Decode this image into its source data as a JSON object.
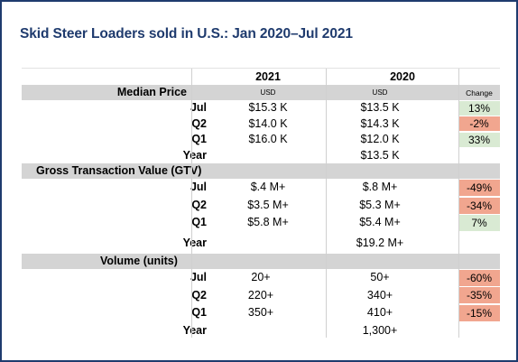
{
  "title": "Skid Steer Loaders sold in U.S.: Jan 2020–Jul 2021",
  "columns": {
    "y2021": "2021",
    "y2020": "2020",
    "unit_2021": "USD",
    "unit_2020": "USD",
    "change": "Change"
  },
  "sections": [
    {
      "name": "Median Price",
      "rows": [
        {
          "label": "Jul",
          "v2021": "$15.3 K",
          "v2020": "$13.5 K",
          "change": "13%",
          "sign": "pos"
        },
        {
          "label": "Q2",
          "v2021": "$14.0 K",
          "v2020": "$14.3 K",
          "change": "-2%",
          "sign": "neg"
        },
        {
          "label": "Q1",
          "v2021": "$16.0 K",
          "v2020": "$12.0 K",
          "change": "33%",
          "sign": "pos"
        },
        {
          "label": "Year",
          "v2021": "",
          "v2020": "$13.5 K",
          "change": "",
          "sign": ""
        }
      ]
    },
    {
      "name": "Gross Transaction Value (GTV)",
      "rows": [
        {
          "label": "Jul",
          "v2021": "$.4 M+",
          "v2020": "$.8 M+",
          "change": "-49%",
          "sign": "neg"
        },
        {
          "label": "Q2",
          "v2021": "$3.5 M+",
          "v2020": "$5.3 M+",
          "change": "-34%",
          "sign": "neg"
        },
        {
          "label": "Q1",
          "v2021": "$5.8 M+",
          "v2020": "$5.4 M+",
          "change": "7%",
          "sign": "pos"
        },
        {
          "label": "Year",
          "v2021": "",
          "v2020": "$19.2 M+",
          "change": "",
          "sign": ""
        }
      ]
    },
    {
      "name": "Volume (units)",
      "rows": [
        {
          "label": "Jul",
          "v2021": "20+",
          "v2020": "50+",
          "change": "-60%",
          "sign": "neg"
        },
        {
          "label": "Q2",
          "v2021": "220+",
          "v2020": "340+",
          "change": "-35%",
          "sign": "neg"
        },
        {
          "label": "Q1",
          "v2021": "350+",
          "v2020": "410+",
          "change": "-15%",
          "sign": "neg"
        },
        {
          "label": "Year",
          "v2021": "",
          "v2020": "1,300+",
          "change": "",
          "sign": ""
        }
      ]
    }
  ],
  "colors": {
    "border": "#1f3b6e",
    "title": "#1f3b6e",
    "band": "#d4d4d4",
    "positive": "#d9ead3",
    "negative": "#f1a68f"
  }
}
